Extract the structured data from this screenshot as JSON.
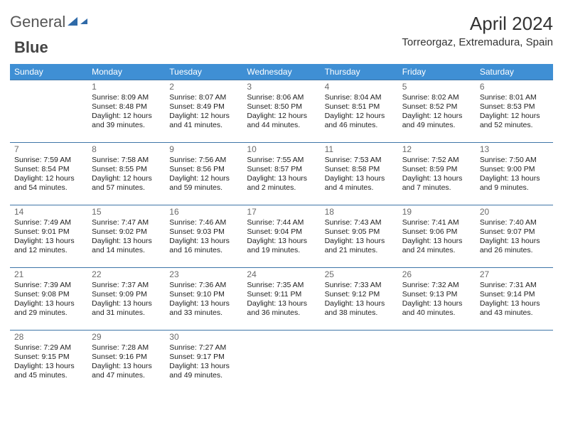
{
  "logo": {
    "part1": "General",
    "part2": "Blue"
  },
  "title": "April 2024",
  "location": "Torreorgaz, Extremadura, Spain",
  "columns": [
    "Sunday",
    "Monday",
    "Tuesday",
    "Wednesday",
    "Thursday",
    "Friday",
    "Saturday"
  ],
  "colors": {
    "header_bg": "#3f8fd4",
    "header_fg": "#ffffff",
    "cell_border": "#3f76a8",
    "logo_accent": "#2f6aa8",
    "text": "#222222",
    "daynum": "#6a6a6a",
    "title_color": "#333333"
  },
  "typography": {
    "title_fontsize": 26,
    "location_fontsize": 15,
    "header_fontsize": 12,
    "cell_fontsize": 10.5,
    "daynum_fontsize": 12
  },
  "weeks": [
    [
      null,
      {
        "n": "1",
        "sr": "Sunrise: 8:09 AM",
        "ss": "Sunset: 8:48 PM",
        "dl": "Daylight: 12 hours and 39 minutes."
      },
      {
        "n": "2",
        "sr": "Sunrise: 8:07 AM",
        "ss": "Sunset: 8:49 PM",
        "dl": "Daylight: 12 hours and 41 minutes."
      },
      {
        "n": "3",
        "sr": "Sunrise: 8:06 AM",
        "ss": "Sunset: 8:50 PM",
        "dl": "Daylight: 12 hours and 44 minutes."
      },
      {
        "n": "4",
        "sr": "Sunrise: 8:04 AM",
        "ss": "Sunset: 8:51 PM",
        "dl": "Daylight: 12 hours and 46 minutes."
      },
      {
        "n": "5",
        "sr": "Sunrise: 8:02 AM",
        "ss": "Sunset: 8:52 PM",
        "dl": "Daylight: 12 hours and 49 minutes."
      },
      {
        "n": "6",
        "sr": "Sunrise: 8:01 AM",
        "ss": "Sunset: 8:53 PM",
        "dl": "Daylight: 12 hours and 52 minutes."
      }
    ],
    [
      {
        "n": "7",
        "sr": "Sunrise: 7:59 AM",
        "ss": "Sunset: 8:54 PM",
        "dl": "Daylight: 12 hours and 54 minutes."
      },
      {
        "n": "8",
        "sr": "Sunrise: 7:58 AM",
        "ss": "Sunset: 8:55 PM",
        "dl": "Daylight: 12 hours and 57 minutes."
      },
      {
        "n": "9",
        "sr": "Sunrise: 7:56 AM",
        "ss": "Sunset: 8:56 PM",
        "dl": "Daylight: 12 hours and 59 minutes."
      },
      {
        "n": "10",
        "sr": "Sunrise: 7:55 AM",
        "ss": "Sunset: 8:57 PM",
        "dl": "Daylight: 13 hours and 2 minutes."
      },
      {
        "n": "11",
        "sr": "Sunrise: 7:53 AM",
        "ss": "Sunset: 8:58 PM",
        "dl": "Daylight: 13 hours and 4 minutes."
      },
      {
        "n": "12",
        "sr": "Sunrise: 7:52 AM",
        "ss": "Sunset: 8:59 PM",
        "dl": "Daylight: 13 hours and 7 minutes."
      },
      {
        "n": "13",
        "sr": "Sunrise: 7:50 AM",
        "ss": "Sunset: 9:00 PM",
        "dl": "Daylight: 13 hours and 9 minutes."
      }
    ],
    [
      {
        "n": "14",
        "sr": "Sunrise: 7:49 AM",
        "ss": "Sunset: 9:01 PM",
        "dl": "Daylight: 13 hours and 12 minutes."
      },
      {
        "n": "15",
        "sr": "Sunrise: 7:47 AM",
        "ss": "Sunset: 9:02 PM",
        "dl": "Daylight: 13 hours and 14 minutes."
      },
      {
        "n": "16",
        "sr": "Sunrise: 7:46 AM",
        "ss": "Sunset: 9:03 PM",
        "dl": "Daylight: 13 hours and 16 minutes."
      },
      {
        "n": "17",
        "sr": "Sunrise: 7:44 AM",
        "ss": "Sunset: 9:04 PM",
        "dl": "Daylight: 13 hours and 19 minutes."
      },
      {
        "n": "18",
        "sr": "Sunrise: 7:43 AM",
        "ss": "Sunset: 9:05 PM",
        "dl": "Daylight: 13 hours and 21 minutes."
      },
      {
        "n": "19",
        "sr": "Sunrise: 7:41 AM",
        "ss": "Sunset: 9:06 PM",
        "dl": "Daylight: 13 hours and 24 minutes."
      },
      {
        "n": "20",
        "sr": "Sunrise: 7:40 AM",
        "ss": "Sunset: 9:07 PM",
        "dl": "Daylight: 13 hours and 26 minutes."
      }
    ],
    [
      {
        "n": "21",
        "sr": "Sunrise: 7:39 AM",
        "ss": "Sunset: 9:08 PM",
        "dl": "Daylight: 13 hours and 29 minutes."
      },
      {
        "n": "22",
        "sr": "Sunrise: 7:37 AM",
        "ss": "Sunset: 9:09 PM",
        "dl": "Daylight: 13 hours and 31 minutes."
      },
      {
        "n": "23",
        "sr": "Sunrise: 7:36 AM",
        "ss": "Sunset: 9:10 PM",
        "dl": "Daylight: 13 hours and 33 minutes."
      },
      {
        "n": "24",
        "sr": "Sunrise: 7:35 AM",
        "ss": "Sunset: 9:11 PM",
        "dl": "Daylight: 13 hours and 36 minutes."
      },
      {
        "n": "25",
        "sr": "Sunrise: 7:33 AM",
        "ss": "Sunset: 9:12 PM",
        "dl": "Daylight: 13 hours and 38 minutes."
      },
      {
        "n": "26",
        "sr": "Sunrise: 7:32 AM",
        "ss": "Sunset: 9:13 PM",
        "dl": "Daylight: 13 hours and 40 minutes."
      },
      {
        "n": "27",
        "sr": "Sunrise: 7:31 AM",
        "ss": "Sunset: 9:14 PM",
        "dl": "Daylight: 13 hours and 43 minutes."
      }
    ],
    [
      {
        "n": "28",
        "sr": "Sunrise: 7:29 AM",
        "ss": "Sunset: 9:15 PM",
        "dl": "Daylight: 13 hours and 45 minutes."
      },
      {
        "n": "29",
        "sr": "Sunrise: 7:28 AM",
        "ss": "Sunset: 9:16 PM",
        "dl": "Daylight: 13 hours and 47 minutes."
      },
      {
        "n": "30",
        "sr": "Sunrise: 7:27 AM",
        "ss": "Sunset: 9:17 PM",
        "dl": "Daylight: 13 hours and 49 minutes."
      },
      null,
      null,
      null,
      null
    ]
  ]
}
